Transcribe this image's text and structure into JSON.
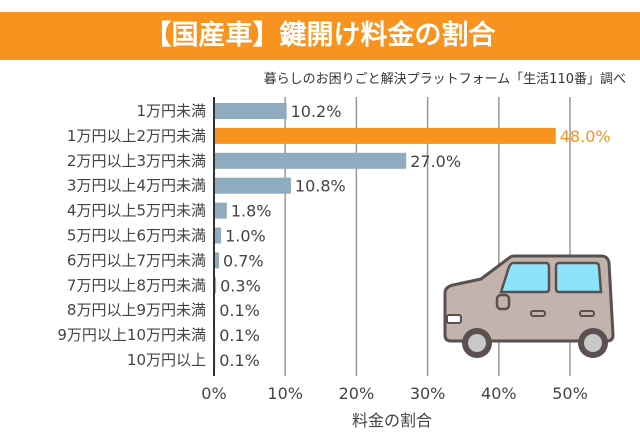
{
  "header": {
    "title": "【国産車】鍵開け料金の割合",
    "source": "暮らしのお困りごと解決プラットフォーム「生活110番」調べ"
  },
  "chart_data": {
    "type": "bar",
    "orientation": "horizontal",
    "title": "【国産車】鍵開け料金の割合",
    "xlabel": "料金の割合",
    "ylabel": "",
    "xlim": [
      0,
      50
    ],
    "xticks": [
      "0%",
      "10%",
      "20%",
      "30%",
      "40%",
      "50%"
    ],
    "grid": true,
    "categories": [
      "1万円未満",
      "1万円以上2万円未満",
      "2万円以上3万円未満",
      "3万円以上4万円未満",
      "4万円以上5万円未満",
      "5万円以上6万円未満",
      "6万円以上7万円未満",
      "7万円以上8万円未満",
      "8万円以上9万円未満",
      "9万円以上10万円未満",
      "10万円以上"
    ],
    "values": [
      10.2,
      48.0,
      27.0,
      10.8,
      1.8,
      1.0,
      0.7,
      0.3,
      0.1,
      0.1,
      0.1
    ],
    "value_labels": [
      "10.2%",
      "48.0%",
      "27.0%",
      "10.8%",
      "1.8%",
      "1.0%",
      "0.7%",
      "0.3%",
      "0.1%",
      "0.1%",
      "0.1%"
    ],
    "highlight_index": 1
  },
  "colors": {
    "accent": "#f7931e",
    "bar": "#8fabbf",
    "grid": "#999999",
    "car_body": "#c2b3ad",
    "car_window": "#8fe2fb",
    "outline": "#5a5050"
  },
  "icons": {
    "illustration": "car-icon"
  }
}
